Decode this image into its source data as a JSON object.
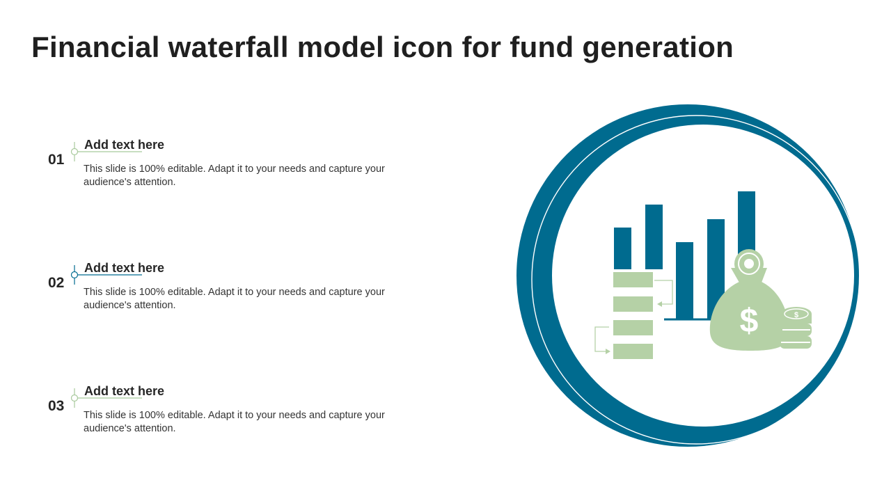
{
  "title": "Financial waterfall model icon for fund generation",
  "items": [
    {
      "number": "01",
      "heading": "Add text here",
      "text": "This slide is 100% editable. Adapt it to your needs and capture your audience's attention.",
      "accent": "#a8c99c"
    },
    {
      "number": "02",
      "heading": "Add text here",
      "text": "This slide is 100% editable. Adapt it to your needs and capture your audience's attention.",
      "accent": "#006b8f"
    },
    {
      "number": "03",
      "heading": "Add text here",
      "text": "This slide is 100% editable. Adapt it to your needs and capture your audience's attention.",
      "accent": "#a8c99c"
    }
  ],
  "colors": {
    "teal": "#006b8f",
    "green": "#b5d1a6"
  },
  "icon": {
    "currency_symbol": "$"
  }
}
